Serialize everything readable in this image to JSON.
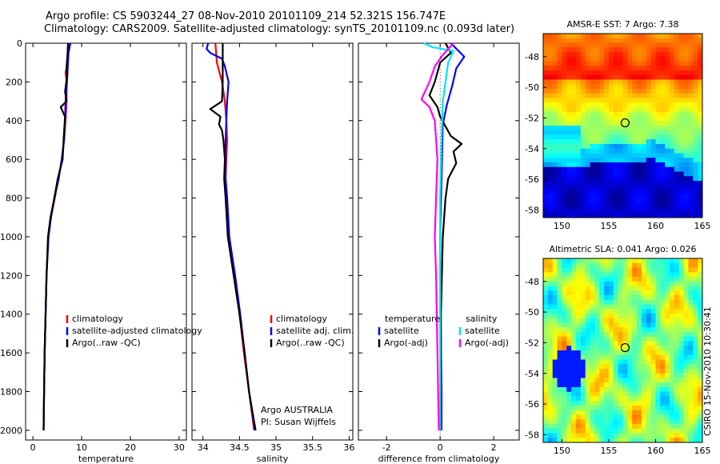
{
  "header": {
    "line1": "Argo profile: CS 5903244_27 08-Nov-2010 20101109_214 52.321S 156.747E",
    "line2": "Climatology: CARS2009. Satellite-adjusted climatology: synTS_20101109.nc (0.093d later)"
  },
  "side_stamp": "CSIRO 15-Nov-2010 10:30:41",
  "chart_data": [
    {
      "type": "line",
      "id": "temperature",
      "xlabel": "temperature",
      "ylabel": "",
      "xlim": [
        -1.5,
        31.5
      ],
      "ylim": [
        2050,
        0
      ],
      "xticks": [
        0,
        10,
        20,
        30
      ],
      "yticks": [
        0,
        200,
        400,
        600,
        800,
        1000,
        1200,
        1400,
        1600,
        1800,
        2000
      ],
      "legend": [
        "climatology",
        "satellite-adjusted climatology",
        "Argo(..raw -QC)"
      ],
      "series": [
        {
          "name": "climatology",
          "color": "#ff0000",
          "points": [
            [
              7.4,
              0
            ],
            [
              7.2,
              50
            ],
            [
              7.2,
              100
            ],
            [
              6.7,
              150
            ],
            [
              6.9,
              200
            ],
            [
              6.9,
              300
            ],
            [
              6.7,
              400
            ],
            [
              6.4,
              500
            ],
            [
              6.0,
              600
            ],
            [
              5.2,
              700
            ],
            [
              4.5,
              800
            ],
            [
              3.7,
              900
            ],
            [
              3.2,
              1000
            ],
            [
              2.8,
              1200
            ],
            [
              2.6,
              1400
            ],
            [
              2.4,
              1600
            ],
            [
              2.3,
              1800
            ],
            [
              2.2,
              2000
            ]
          ]
        },
        {
          "name": "satellite-adjusted climatology",
          "color": "#0000ff",
          "points": [
            [
              7.7,
              0
            ],
            [
              7.3,
              50
            ],
            [
              7.2,
              100
            ],
            [
              7.0,
              200
            ],
            [
              6.7,
              300
            ],
            [
              6.6,
              400
            ],
            [
              6.4,
              500
            ],
            [
              5.9,
              600
            ],
            [
              5.3,
              700
            ],
            [
              4.4,
              800
            ],
            [
              3.7,
              900
            ],
            [
              3.2,
              1000
            ],
            [
              2.8,
              1200
            ],
            [
              2.6,
              1400
            ],
            [
              2.4,
              1600
            ],
            [
              2.3,
              1800
            ],
            [
              2.2,
              2000
            ]
          ]
        },
        {
          "name": "Argo(..raw -QC)",
          "color": "#000000",
          "points": [
            [
              7.2,
              0
            ],
            [
              7.1,
              60
            ],
            [
              6.9,
              120
            ],
            [
              7.0,
              170
            ],
            [
              6.6,
              250
            ],
            [
              6.9,
              300
            ],
            [
              5.7,
              330
            ],
            [
              6.6,
              380
            ],
            [
              6.3,
              500
            ],
            [
              6.1,
              600
            ],
            [
              5.1,
              700
            ],
            [
              4.4,
              800
            ],
            [
              3.6,
              900
            ],
            [
              3.1,
              1000
            ],
            [
              2.8,
              1200
            ],
            [
              2.6,
              1400
            ],
            [
              2.4,
              1600
            ],
            [
              2.3,
              1800
            ],
            [
              2.2,
              2000
            ]
          ]
        }
      ]
    },
    {
      "type": "line",
      "id": "salinity",
      "xlabel": "salinity",
      "ylabel": "",
      "xlim": [
        33.85,
        36.05
      ],
      "ylim": [
        2050,
        0
      ],
      "xticks": [
        34,
        34.5,
        35,
        35.5,
        36
      ],
      "xticklabels": [
        "34",
        "34.5",
        "35",
        "35.5",
        "36"
      ],
      "legend": [
        "climatology",
        "satellite adj. clim.",
        "Argo(..raw -QC)"
      ],
      "annotation": [
        "Argo AUSTRALIA",
        "PI: Susan Wijffels"
      ],
      "series": [
        {
          "name": "climatology",
          "color": "#ff0000",
          "points": [
            [
              34.17,
              0
            ],
            [
              34.19,
              100
            ],
            [
              34.26,
              200
            ],
            [
              34.3,
              300
            ],
            [
              34.32,
              400
            ],
            [
              34.33,
              500
            ],
            [
              34.32,
              600
            ],
            [
              34.31,
              700
            ],
            [
              34.33,
              800
            ],
            [
              34.36,
              1000
            ],
            [
              34.43,
              1200
            ],
            [
              34.5,
              1400
            ],
            [
              34.56,
              1600
            ],
            [
              34.63,
              1800
            ],
            [
              34.7,
              2000
            ]
          ]
        },
        {
          "name": "satellite adj. clim.",
          "color": "#0000ff",
          "points": [
            [
              34.07,
              0
            ],
            [
              34.05,
              30
            ],
            [
              34.1,
              50
            ],
            [
              34.26,
              80
            ],
            [
              34.3,
              120
            ],
            [
              34.35,
              200
            ],
            [
              34.33,
              300
            ],
            [
              34.32,
              400
            ],
            [
              34.31,
              500
            ],
            [
              34.31,
              600
            ],
            [
              34.31,
              700
            ],
            [
              34.33,
              800
            ],
            [
              34.36,
              1000
            ],
            [
              34.44,
              1200
            ],
            [
              34.51,
              1400
            ],
            [
              34.57,
              1600
            ],
            [
              34.63,
              1800
            ],
            [
              34.71,
              2000
            ]
          ]
        },
        {
          "name": "Argo(..raw -QC)",
          "color": "#000000",
          "points": [
            [
              34.27,
              0
            ],
            [
              34.27,
              100
            ],
            [
              34.27,
              200
            ],
            [
              34.26,
              300
            ],
            [
              34.1,
              340
            ],
            [
              34.24,
              380
            ],
            [
              34.22,
              420
            ],
            [
              34.26,
              450
            ],
            [
              34.28,
              500
            ],
            [
              34.3,
              600
            ],
            [
              34.29,
              700
            ],
            [
              34.31,
              800
            ],
            [
              34.34,
              1000
            ],
            [
              34.42,
              1200
            ],
            [
              34.5,
              1400
            ],
            [
              34.57,
              1600
            ],
            [
              34.63,
              1800
            ],
            [
              34.72,
              2000
            ]
          ]
        }
      ]
    },
    {
      "type": "line",
      "id": "difference",
      "xlabel": "difference from climatology",
      "ylabel": "",
      "xlim": [
        -3.05,
        2.95
      ],
      "ylim": [
        2050,
        0
      ],
      "xticks": [
        -2,
        0,
        2
      ],
      "legend": {
        "temperature": [
          "temperature",
          "satellite",
          "Argo(-adj)"
        ],
        "salinity": [
          "salinity",
          "satellite",
          "Argo(-adj)"
        ]
      },
      "series": [
        {
          "name": "temperature satellite",
          "color": "#0000ff",
          "points": [
            [
              0.4,
              0
            ],
            [
              0.9,
              70
            ],
            [
              0.6,
              130
            ],
            [
              0.45,
              220
            ],
            [
              0.25,
              320
            ],
            [
              0.1,
              420
            ],
            [
              0.05,
              700
            ],
            [
              0.0,
              1000
            ],
            [
              0.02,
              1400
            ],
            [
              0.05,
              1800
            ],
            [
              0.05,
              2000
            ]
          ]
        },
        {
          "name": "temperature Argo(-adj)",
          "color": "#000000",
          "points": [
            [
              0.2,
              0
            ],
            [
              0.4,
              50
            ],
            [
              0.0,
              100
            ],
            [
              -0.2,
              200
            ],
            [
              -0.4,
              270
            ],
            [
              -0.1,
              330
            ],
            [
              0.0,
              380
            ],
            [
              0.4,
              480
            ],
            [
              0.8,
              520
            ],
            [
              0.5,
              560
            ],
            [
              0.6,
              620
            ],
            [
              0.3,
              700
            ],
            [
              0.2,
              800
            ],
            [
              0.1,
              1000
            ],
            [
              0.03,
              1400
            ],
            [
              0.03,
              1800
            ],
            [
              0.02,
              2000
            ]
          ]
        },
        {
          "name": "salinity satellite",
          "color": "#00e5ee",
          "points": [
            [
              -0.6,
              0
            ],
            [
              -0.3,
              20
            ],
            [
              0.5,
              40
            ],
            [
              0.3,
              100
            ],
            [
              0.2,
              200
            ],
            [
              0.1,
              300
            ],
            [
              0.05,
              500
            ],
            [
              0.0,
              800
            ],
            [
              0.0,
              1200
            ],
            [
              0.0,
              1600
            ],
            [
              0.0,
              2000
            ]
          ]
        },
        {
          "name": "salinity Argo(-adj)",
          "color": "#ff00ff",
          "points": [
            [
              0.5,
              0
            ],
            [
              0.1,
              60
            ],
            [
              -0.2,
              120
            ],
            [
              -0.4,
              200
            ],
            [
              -0.7,
              290
            ],
            [
              -0.4,
              330
            ],
            [
              -0.2,
              400
            ],
            [
              -0.1,
              600
            ],
            [
              -0.15,
              800
            ],
            [
              -0.2,
              1000
            ],
            [
              -0.15,
              1200
            ],
            [
              -0.1,
              1600
            ],
            [
              -0.05,
              2000
            ]
          ]
        }
      ]
    },
    {
      "type": "heatmap",
      "id": "sst-map",
      "title": "AMSR-E SST: 7 Argo: 7.38",
      "xlim": [
        148,
        165
      ],
      "ylim": [
        -58.5,
        -46.5
      ],
      "xticks": [
        150,
        155,
        160,
        165
      ],
      "yticks": [
        -48,
        -50,
        -52,
        -54,
        -56,
        -58
      ],
      "marker": {
        "lon": 156.75,
        "lat": -52.32
      }
    },
    {
      "type": "heatmap",
      "id": "sla-map",
      "title": "Altimetric SLA: 0.041 Argo: 0.026",
      "xlim": [
        148,
        165
      ],
      "ylim": [
        -58.5,
        -46.5
      ],
      "xticks": [
        150,
        155,
        160,
        165
      ],
      "yticks": [
        -48,
        -50,
        -52,
        -54,
        -56,
        -58
      ],
      "marker": {
        "lon": 156.75,
        "lat": -52.32
      }
    }
  ]
}
